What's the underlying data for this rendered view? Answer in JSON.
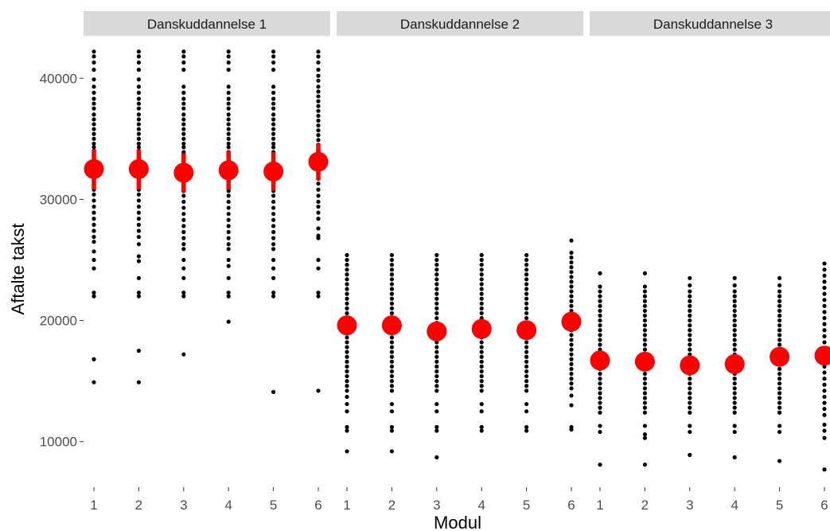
{
  "chart_data": {
    "type": "scatter",
    "xlabel": "Modul",
    "ylabel": "Aftalte takst",
    "ylim": [
      6500,
      43500
    ],
    "yticks": [
      10000,
      20000,
      30000,
      40000
    ],
    "grid": false,
    "colors": {
      "points": "#000000",
      "mean": "#ff0000",
      "strip": "#d9d9d9"
    },
    "panels": [
      {
        "strip": "Danskuddannelse 1",
        "x_ticks": [
          "1",
          "2",
          "3",
          "4",
          "5",
          "6"
        ],
        "means": [
          32500,
          32500,
          32200,
          32400,
          32300,
          33100
        ],
        "ci": [
          [
            30800,
            34100
          ],
          [
            30800,
            34100
          ],
          [
            30600,
            33800
          ],
          [
            30800,
            34000
          ],
          [
            30700,
            33900
          ],
          [
            31600,
            34600
          ]
        ],
        "points": [
          [
            42200,
            41800,
            41300,
            40700,
            39900,
            39300,
            38800,
            38300,
            37900,
            37500,
            37000,
            36600,
            36200,
            35800,
            35400,
            35000,
            34600,
            34300,
            34000,
            33600,
            33200,
            32800,
            32400,
            32000,
            31600,
            31200,
            30800,
            30400,
            29900,
            29400,
            28900,
            28400,
            27900,
            27400,
            26900,
            26500,
            25700,
            25000,
            24300,
            22300,
            22000,
            16800,
            14900
          ],
          [
            42200,
            41800,
            41300,
            40700,
            39900,
            39300,
            38800,
            38300,
            37900,
            37500,
            37000,
            36600,
            36200,
            35800,
            35400,
            35000,
            34600,
            34300,
            34000,
            33600,
            33200,
            32800,
            32400,
            32000,
            31600,
            31200,
            30800,
            30400,
            29900,
            29400,
            28900,
            28400,
            27900,
            27400,
            26900,
            26300,
            25300,
            24900,
            23500,
            22300,
            22000,
            17500,
            14900
          ],
          [
            42200,
            41800,
            41300,
            40700,
            39300,
            38800,
            38300,
            37900,
            37500,
            37000,
            36600,
            36200,
            35800,
            35400,
            35000,
            34600,
            34300,
            33900,
            33500,
            33100,
            32700,
            32300,
            31900,
            31500,
            31100,
            30700,
            30300,
            29800,
            29300,
            28800,
            28300,
            27800,
            27300,
            26800,
            26300,
            25900,
            25000,
            24300,
            23500,
            22300,
            22000,
            17200
          ],
          [
            42200,
            41800,
            41300,
            40700,
            39300,
            38800,
            38300,
            37900,
            37500,
            37000,
            36600,
            36200,
            35800,
            35400,
            35000,
            34600,
            34300,
            33900,
            33500,
            33100,
            32700,
            32300,
            31900,
            31500,
            31100,
            30700,
            30300,
            29800,
            29300,
            28800,
            28300,
            27800,
            27300,
            26800,
            26300,
            25900,
            25000,
            24500,
            23500,
            22300,
            22000,
            19900
          ],
          [
            42200,
            41800,
            41300,
            40700,
            39300,
            38800,
            38300,
            37900,
            37500,
            37000,
            36600,
            36200,
            35800,
            35400,
            35000,
            34600,
            34300,
            33900,
            33500,
            33100,
            32700,
            32300,
            31900,
            31500,
            31100,
            30700,
            30300,
            29800,
            29300,
            28800,
            28300,
            27800,
            27300,
            26800,
            26300,
            25900,
            25000,
            24300,
            23500,
            22300,
            22000,
            14100
          ],
          [
            42200,
            41800,
            41300,
            40700,
            40200,
            39800,
            39300,
            38900,
            38500,
            38100,
            37700,
            37300,
            36900,
            36500,
            36100,
            35700,
            35300,
            34900,
            34500,
            34100,
            33700,
            33300,
            32900,
            32500,
            32100,
            31700,
            31300,
            30800,
            30300,
            29800,
            29400,
            28900,
            28400,
            27600,
            27000,
            26800,
            25000,
            24300,
            22300,
            22000,
            14200
          ]
        ]
      },
      {
        "strip": "Danskuddannelse 2",
        "x_ticks": [
          "1",
          "2",
          "3",
          "4",
          "5",
          "6"
        ],
        "means": [
          19600,
          19600,
          19100,
          19300,
          19200,
          19900
        ],
        "ci": [
          [
            18800,
            20400
          ],
          [
            18800,
            20400
          ],
          [
            18300,
            19900
          ],
          [
            18500,
            20100
          ],
          [
            18400,
            20000
          ],
          [
            19100,
            20700
          ]
        ],
        "points": [
          [
            25400,
            25000,
            24600,
            24200,
            23800,
            23400,
            23000,
            22600,
            22200,
            21800,
            21400,
            21000,
            20600,
            20200,
            19800,
            19400,
            19000,
            18600,
            18200,
            17800,
            17400,
            17000,
            16600,
            16200,
            15800,
            15400,
            15000,
            14600,
            14200,
            13700,
            13100,
            12500,
            11200,
            10900,
            9200
          ],
          [
            25400,
            25000,
            24600,
            24200,
            23800,
            23400,
            23000,
            22600,
            22200,
            21800,
            21400,
            21000,
            20600,
            20200,
            19800,
            19400,
            19000,
            18600,
            18200,
            17800,
            17400,
            17000,
            16600,
            16200,
            15800,
            15400,
            15000,
            14600,
            14200,
            13100,
            12500,
            11200,
            10900,
            9200
          ],
          [
            25400,
            25000,
            24600,
            24200,
            23800,
            23400,
            23000,
            22600,
            22200,
            21800,
            21400,
            21000,
            20600,
            20200,
            19800,
            19400,
            19000,
            18600,
            18200,
            17800,
            17400,
            17000,
            16600,
            16200,
            15800,
            15400,
            15000,
            14600,
            14200,
            13100,
            12500,
            11200,
            10900,
            8700
          ],
          [
            25400,
            25000,
            24600,
            24200,
            23800,
            23400,
            23000,
            22600,
            22200,
            21800,
            21400,
            21000,
            20600,
            20200,
            19800,
            19400,
            19000,
            18600,
            18200,
            17800,
            17400,
            17000,
            16600,
            16200,
            15800,
            15400,
            15000,
            14600,
            14200,
            13100,
            12500,
            11200,
            10900
          ],
          [
            25400,
            25000,
            24600,
            24200,
            23800,
            23400,
            23000,
            22600,
            22200,
            21800,
            21400,
            21000,
            20600,
            20200,
            19800,
            19400,
            19000,
            18600,
            18200,
            17800,
            17400,
            17000,
            16600,
            16200,
            15800,
            15400,
            15000,
            14600,
            14200,
            13100,
            12500,
            11200,
            10900
          ],
          [
            26600,
            25600,
            25200,
            24800,
            24400,
            24000,
            23600,
            23200,
            22800,
            22400,
            22000,
            21600,
            21200,
            20800,
            20400,
            20000,
            19600,
            19200,
            18800,
            18400,
            18000,
            17600,
            17200,
            16800,
            16400,
            16000,
            15600,
            15200,
            14800,
            14400,
            13800,
            13000,
            11200,
            11000
          ]
        ]
      },
      {
        "strip": "Danskuddannelse 3",
        "x_ticks": [
          "1",
          "2",
          "3",
          "4",
          "5",
          "6"
        ],
        "means": [
          16700,
          16600,
          16300,
          16400,
          17000,
          17100
        ],
        "ci": [
          [
            16000,
            17400
          ],
          [
            15900,
            17300
          ],
          [
            15600,
            17000
          ],
          [
            15700,
            17100
          ],
          [
            16300,
            17700
          ],
          [
            16400,
            17800
          ]
        ],
        "points": [
          [
            23900,
            22800,
            22400,
            22000,
            21600,
            21200,
            20800,
            20400,
            20000,
            19600,
            19200,
            18800,
            18400,
            18000,
            17600,
            17200,
            16800,
            16400,
            16000,
            15600,
            15200,
            14800,
            14400,
            14000,
            13600,
            13200,
            12800,
            12400,
            11300,
            10800,
            8100
          ],
          [
            23900,
            22800,
            22400,
            22000,
            21600,
            21200,
            20800,
            20400,
            20000,
            19600,
            19200,
            18800,
            18400,
            18000,
            17600,
            17200,
            16800,
            16400,
            16000,
            15600,
            15200,
            14800,
            14400,
            14000,
            13600,
            13200,
            12800,
            12400,
            11300,
            10600,
            10300,
            8100
          ],
          [
            23500,
            22900,
            22400,
            22000,
            21600,
            21200,
            20800,
            20400,
            20000,
            19600,
            19200,
            18800,
            18400,
            18000,
            17600,
            17200,
            16800,
            16400,
            16000,
            15600,
            15200,
            14800,
            14400,
            14000,
            13600,
            13200,
            12800,
            12400,
            11300,
            10800,
            8900
          ],
          [
            23500,
            22900,
            22400,
            22000,
            21600,
            21200,
            20800,
            20400,
            20000,
            19600,
            19200,
            18800,
            18400,
            18000,
            17600,
            17200,
            16800,
            16400,
            16000,
            15600,
            15200,
            14800,
            14400,
            14000,
            13600,
            13200,
            12800,
            12400,
            11300,
            10800,
            8700
          ],
          [
            23500,
            22900,
            22400,
            22000,
            21600,
            21200,
            20800,
            20400,
            20000,
            19600,
            19200,
            18800,
            18400,
            18000,
            17600,
            17200,
            16800,
            16400,
            16000,
            15600,
            15200,
            14800,
            14400,
            14000,
            13600,
            13200,
            12800,
            12400,
            11300,
            10800,
            8400
          ],
          [
            24700,
            24200,
            23700,
            23200,
            22700,
            22200,
            21700,
            21200,
            20700,
            20200,
            19700,
            19200,
            18700,
            18200,
            17700,
            17200,
            16700,
            16200,
            15700,
            15200,
            14700,
            14200,
            13700,
            13200,
            12700,
            12200,
            11400,
            10900,
            10300,
            7700
          ]
        ]
      }
    ]
  }
}
